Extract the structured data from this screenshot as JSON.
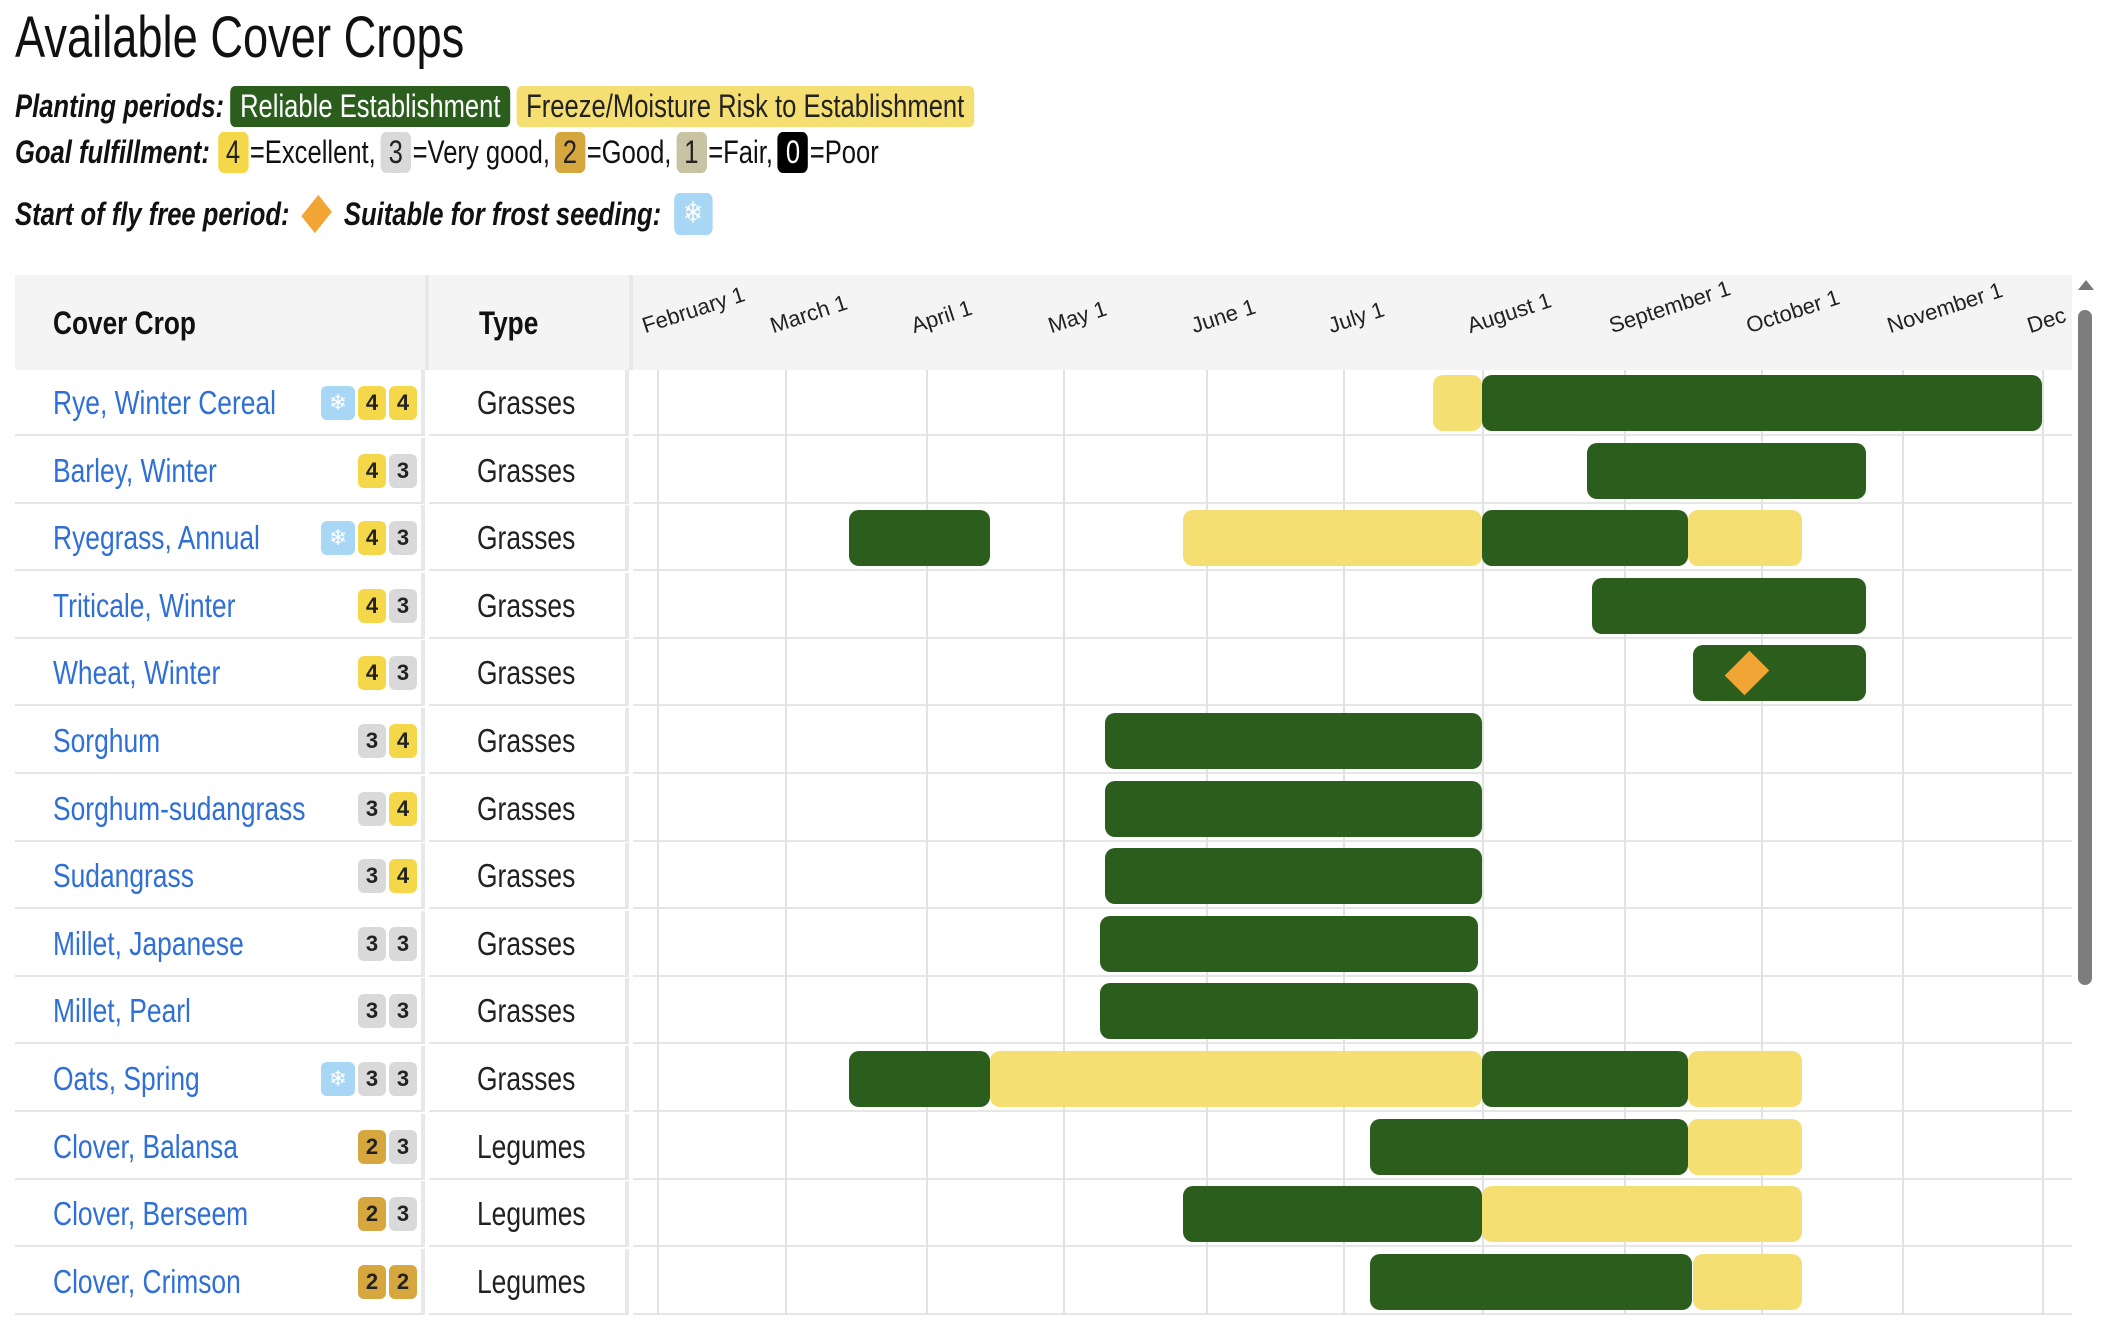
{
  "title": "Available Cover Crops",
  "legend": {
    "planting_label": "Planting periods:",
    "reliable_label": "Reliable Establishment",
    "risk_label": "Freeze/Moisture Risk to Establishment",
    "goal_label": "Goal fulfillment:",
    "ratings": [
      {
        "num": "4",
        "text": "=Excellent,"
      },
      {
        "num": "3",
        "text": "=Very good,"
      },
      {
        "num": "2",
        "text": "=Good,"
      },
      {
        "num": "1",
        "text": "=Fair,"
      },
      {
        "num": "0",
        "text": "=Poor"
      }
    ],
    "fly_free_label": "Start of fly free period:",
    "frost_label": "Suitable for frost seeding:",
    "frost_icon": "snowflake-icon",
    "fly_icon": "diamond-icon"
  },
  "colors": {
    "reliable": "#2b5e1d",
    "risk": "#f5df72",
    "rating_4": "#f5d84a",
    "rating_3": "#d9d9d9",
    "rating_2": "#d6a63f",
    "rating_1": "#c8c3a3",
    "rating_0": "#000000",
    "frost": "#a8d6f5",
    "fly_free": "#f0a534",
    "link": "#2f6fd6"
  },
  "table": {
    "col_crop": "Cover Crop",
    "col_type": "Type",
    "months": [
      "February 1",
      "March 1",
      "April 1",
      "May 1",
      "June 1",
      "July 1",
      "August 1",
      "September 1",
      "October 1",
      "November 1",
      "Dec"
    ]
  },
  "crops": [
    {
      "name": "Rye, Winter Cereal",
      "frost": true,
      "ratings": [
        4,
        4
      ],
      "type": "Grasses",
      "bars": [
        {
          "kind": "yellow",
          "start": "Jul 21",
          "end": "Aug 1"
        },
        {
          "kind": "green",
          "start": "Aug 1",
          "end": "Dec 1"
        }
      ]
    },
    {
      "name": "Barley, Winter",
      "frost": false,
      "ratings": [
        4,
        3
      ],
      "type": "Grasses",
      "bars": [
        {
          "kind": "green",
          "start": "Aug 24",
          "end": "Oct 24"
        }
      ]
    },
    {
      "name": "Ryegrass, Annual",
      "frost": true,
      "ratings": [
        4,
        3
      ],
      "type": "Grasses",
      "bars": [
        {
          "kind": "green",
          "start": "Mar 15",
          "end": "Apr 15"
        },
        {
          "kind": "yellow",
          "start": "May 27",
          "end": "Aug 1"
        },
        {
          "kind": "green",
          "start": "Aug 1",
          "end": "Sep 15"
        },
        {
          "kind": "yellow",
          "start": "Sep 15",
          "end": "Oct 10"
        }
      ]
    },
    {
      "name": "Triticale, Winter",
      "frost": false,
      "ratings": [
        4,
        3
      ],
      "type": "Grasses",
      "bars": [
        {
          "kind": "green",
          "start": "Aug 25",
          "end": "Oct 24"
        }
      ]
    },
    {
      "name": "Wheat, Winter",
      "frost": false,
      "ratings": [
        4,
        3
      ],
      "type": "Grasses",
      "bars": [
        {
          "kind": "green",
          "start": "Sep 16",
          "end": "Oct 24"
        }
      ],
      "fly_free": "Sep 28"
    },
    {
      "name": "Sorghum",
      "frost": false,
      "ratings": [
        3,
        4
      ],
      "type": "Grasses",
      "bars": [
        {
          "kind": "green",
          "start": "May 10",
          "end": "Aug 1"
        }
      ]
    },
    {
      "name": "Sorghum-sudangrass",
      "frost": false,
      "ratings": [
        3,
        4
      ],
      "type": "Grasses",
      "bars": [
        {
          "kind": "green",
          "start": "May 10",
          "end": "Aug 1"
        }
      ]
    },
    {
      "name": "Sudangrass",
      "frost": false,
      "ratings": [
        3,
        4
      ],
      "type": "Grasses",
      "bars": [
        {
          "kind": "green",
          "start": "May 10",
          "end": "Aug 1"
        }
      ]
    },
    {
      "name": "Millet, Japanese",
      "frost": false,
      "ratings": [
        3,
        3
      ],
      "type": "Grasses",
      "bars": [
        {
          "kind": "green",
          "start": "May 9",
          "end": "Jul 31"
        }
      ]
    },
    {
      "name": "Millet, Pearl",
      "frost": false,
      "ratings": [
        3,
        3
      ],
      "type": "Grasses",
      "bars": [
        {
          "kind": "green",
          "start": "May 9",
          "end": "Jul 31"
        }
      ]
    },
    {
      "name": "Oats, Spring",
      "frost": true,
      "ratings": [
        3,
        3
      ],
      "type": "Grasses",
      "bars": [
        {
          "kind": "green",
          "start": "Mar 15",
          "end": "Apr 15"
        },
        {
          "kind": "yellow",
          "start": "Apr 15",
          "end": "Aug 1"
        },
        {
          "kind": "green",
          "start": "Aug 1",
          "end": "Sep 15"
        },
        {
          "kind": "yellow",
          "start": "Sep 15",
          "end": "Oct 10"
        }
      ]
    },
    {
      "name": "Clover, Balansa",
      "frost": false,
      "ratings": [
        2,
        3
      ],
      "type": "Legumes",
      "bars": [
        {
          "kind": "green",
          "start": "Jul 7",
          "end": "Sep 15"
        },
        {
          "kind": "yellow",
          "start": "Sep 15",
          "end": "Oct 10"
        }
      ]
    },
    {
      "name": "Clover, Berseem",
      "frost": false,
      "ratings": [
        2,
        3
      ],
      "type": "Legumes",
      "bars": [
        {
          "kind": "green",
          "start": "May 27",
          "end": "Aug 1"
        },
        {
          "kind": "yellow",
          "start": "Aug 1",
          "end": "Oct 10"
        }
      ]
    },
    {
      "name": "Clover, Crimson",
      "frost": false,
      "ratings": [
        2,
        2
      ],
      "type": "Legumes",
      "bars": [
        {
          "kind": "green",
          "start": "Jul 7",
          "end": "Sep 16"
        },
        {
          "kind": "yellow",
          "start": "Sep 16",
          "end": "Oct 10"
        }
      ]
    }
  ]
}
